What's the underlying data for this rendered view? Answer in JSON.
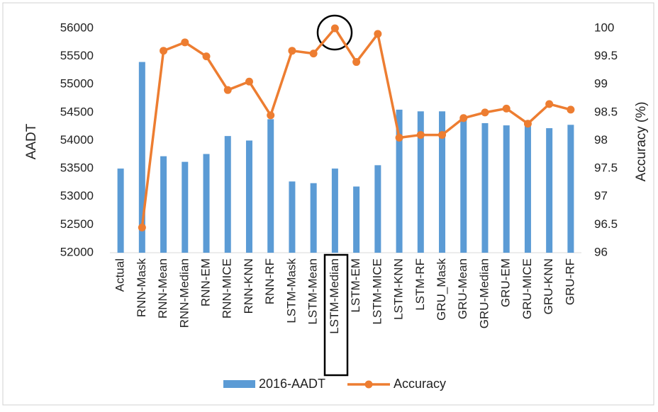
{
  "chart_data": {
    "type": "bar-line",
    "categories": [
      "Actual",
      "RNN-Mask",
      "RNN-Mean",
      "RNN-Median",
      "RNN-EM",
      "RNN-MICE",
      "RNN-KNN",
      "RNN-RF",
      "LSTM-Mask",
      "LSTM-Mean",
      "LSTM-Median",
      "LSTM-EM",
      "LSTM-MICE",
      "LSTM-KNN",
      "LSTM-RF",
      "GRU_Mask",
      "GRU-Mean",
      "GRU-Median",
      "GRU-EM",
      "GRU-MICE",
      "GRU-KNN",
      "GRU-RF"
    ],
    "series": [
      {
        "name": "2016-AADT",
        "type": "bar",
        "color": "#5b9bd5",
        "values": [
          53500,
          55400,
          53720,
          53620,
          53760,
          54080,
          54000,
          54380,
          53270,
          53240,
          53500,
          53180,
          53560,
          54550,
          54520,
          54520,
          54440,
          54310,
          54270,
          54280,
          54220,
          54280
        ]
      },
      {
        "name": "Accuracy",
        "type": "line",
        "axis": "y2",
        "color": "#ed7d31",
        "values": [
          null,
          96.45,
          99.6,
          99.75,
          99.5,
          98.9,
          99.05,
          98.45,
          99.6,
          99.55,
          100,
          99.4,
          99.9,
          98.05,
          98.1,
          98.1,
          98.4,
          98.5,
          98.57,
          98.3,
          98.65,
          98.55
        ]
      }
    ],
    "ylabel": "AADT",
    "y2label": "Accuracy (%)",
    "ylim": [
      52000,
      56000
    ],
    "yticks": [
      52000,
      52500,
      53000,
      53500,
      54000,
      54500,
      55000,
      55500,
      56000
    ],
    "y2lim": [
      96,
      100
    ],
    "y2ticks": [
      96,
      96.5,
      97,
      97.5,
      98,
      98.5,
      99,
      99.5,
      100
    ],
    "legend": "bottom"
  }
}
